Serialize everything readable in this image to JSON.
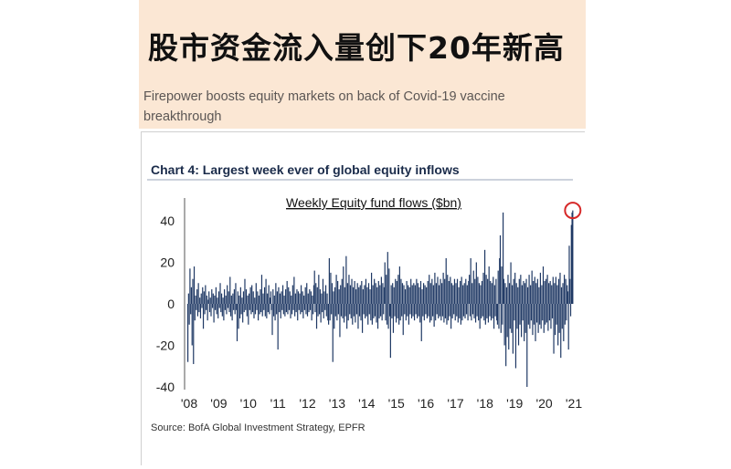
{
  "headline": "股市资金流入量创下20年新高",
  "subheadline": "Firepower boosts equity markets on back of Covid-19 vaccine breakthrough",
  "colors": {
    "header_bg": "#fbe7d4",
    "bar": "#1f3864",
    "highlight_circle": "#d62828"
  },
  "chart_data": {
    "type": "bar",
    "title": "Chart 4: Largest week ever of global equity inflows",
    "subtitle": "Weekly Equity fund flows ($bn)",
    "source": "Source: BofA Global Investment Strategy, EPFR",
    "xlabel": "",
    "ylabel": "",
    "ylim": [
      -40,
      50
    ],
    "yticks": [
      40,
      20,
      0,
      -20,
      -40
    ],
    "xtick_labels": [
      "'08",
      "'09",
      "'10",
      "'11",
      "'12",
      "'13",
      "'14",
      "'15",
      "'16",
      "'17",
      "'18",
      "'19",
      "'20",
      "'21"
    ],
    "x_start": "2008-01",
    "x_end": "2020-11",
    "frequency": "weekly",
    "annotations": [
      {
        "type": "circle",
        "target": "last bar",
        "value": 45
      }
    ],
    "values": [
      -28,
      5,
      -10,
      17,
      -5,
      8,
      -20,
      12,
      -29,
      18,
      -8,
      4,
      -3,
      7,
      -6,
      10,
      -4,
      3,
      -7,
      5,
      -2,
      8,
      -12,
      6,
      -5,
      9,
      -3,
      4,
      -8,
      2,
      6,
      -4,
      3,
      -6,
      7,
      -2,
      5,
      -9,
      4,
      -3,
      8,
      -5,
      3,
      -7,
      6,
      -2,
      10,
      -4,
      5,
      -6,
      3,
      -8,
      7,
      -3,
      4,
      -5,
      9,
      -2,
      6,
      -4,
      13,
      -6,
      4,
      -8,
      5,
      -3,
      7,
      -5,
      10,
      -3,
      -18,
      6,
      -12,
      4,
      -7,
      8,
      -5,
      3,
      -9,
      6,
      -4,
      12,
      -3,
      7,
      -6,
      4,
      -10,
      5,
      -3,
      8,
      -5,
      9,
      -4,
      6,
      -7,
      3,
      -5,
      10,
      -3,
      6,
      -8,
      4,
      -5,
      7,
      -4,
      14,
      -6,
      5,
      -3,
      8,
      -6,
      12,
      -7,
      5,
      -4,
      9,
      -5,
      3,
      6,
      -3,
      -15,
      7,
      -6,
      4,
      -8,
      10,
      -5,
      6,
      -22,
      8,
      -4,
      5,
      -7,
      6,
      -3,
      9,
      -5,
      4,
      -6,
      7,
      -4,
      11,
      -5,
      8,
      -3,
      6,
      -7,
      4,
      -5,
      9,
      -3,
      13,
      -6,
      5,
      -4,
      7,
      -8,
      6,
      -3,
      5,
      -5,
      9,
      -4,
      6,
      -7,
      4,
      -3,
      8,
      -5,
      10,
      -6,
      5,
      -4,
      7,
      -3,
      6,
      -8,
      4,
      -5,
      9,
      16,
      -4,
      10,
      -12,
      8,
      -6,
      14,
      -5,
      7,
      -9,
      5,
      -4,
      12,
      -7,
      6,
      -3,
      9,
      -6,
      5,
      -8,
      -10,
      22,
      -8,
      15,
      -5,
      10,
      -28,
      6,
      -12,
      8,
      -6,
      14,
      -8,
      11,
      -5,
      7,
      -16,
      9,
      -6,
      12,
      -7,
      18,
      -9,
      8,
      -6,
      23,
      -12,
      10,
      -8,
      14,
      -5,
      9,
      -7,
      12,
      -10,
      8,
      -6,
      11,
      -9,
      7,
      -5,
      10,
      -12,
      8,
      -6,
      9,
      -8,
      11,
      -14,
      7,
      -5,
      9,
      -7,
      12,
      -6,
      8,
      -10,
      10,
      -5,
      7,
      -8,
      15,
      -10,
      9,
      -7,
      12,
      -6,
      10,
      -9,
      8,
      -12,
      11,
      -7,
      9,
      -6,
      13,
      -8,
      10,
      -5,
      8,
      20,
      -8,
      14,
      -10,
      25,
      -12,
      17,
      -6,
      -26,
      9,
      -7,
      10,
      -14,
      8,
      -6,
      12,
      -9,
      11,
      -7,
      14,
      -10,
      18,
      -8,
      12,
      -6,
      10,
      -15,
      9,
      -5,
      7,
      -8,
      11,
      -6,
      9,
      -10,
      8,
      -5,
      12,
      -7,
      9,
      -6,
      10,
      -8,
      9,
      -5,
      12,
      -7,
      10,
      -6,
      8,
      -9,
      11,
      -18,
      7,
      -6,
      10,
      -8,
      9,
      -5,
      8,
      -7,
      11,
      -6,
      14,
      -9,
      10,
      -8,
      12,
      -6,
      9,
      -11,
      15,
      -8,
      10,
      -5,
      13,
      -7,
      9,
      -6,
      12,
      -8,
      10,
      -6,
      15,
      -9,
      12,
      -7,
      22,
      -10,
      14,
      -8,
      11,
      -6,
      13,
      -12,
      10,
      -7,
      9,
      -5,
      12,
      -8,
      10,
      -6,
      12,
      -9,
      8,
      -7,
      11,
      -10,
      13,
      -8,
      9,
      -6,
      10,
      -7,
      12,
      -5,
      9,
      -8,
      11,
      14,
      -6,
      22,
      -8,
      10,
      -5,
      16,
      -7,
      12,
      -9,
      20,
      -6,
      13,
      -8,
      10,
      -12,
      9,
      -7,
      11,
      -6,
      15,
      -8,
      26,
      -10,
      14,
      -7,
      12,
      -9,
      18,
      -6,
      11,
      -8,
      10,
      -7,
      13,
      -12,
      9,
      -6,
      12,
      -8,
      -10,
      16,
      -12,
      22,
      33,
      -14,
      18,
      -10,
      44,
      12,
      -20,
      10,
      -30,
      8,
      -16,
      14,
      -22,
      10,
      -12,
      20,
      -14,
      9,
      -24,
      12,
      -8,
      15,
      -31,
      10,
      -12,
      8,
      -20,
      12,
      -10,
      14,
      -16,
      9,
      -8,
      11,
      -18,
      10,
      -14,
      12,
      -40,
      8,
      -10,
      14,
      -12,
      9,
      -8,
      16,
      -15,
      11,
      -10,
      13,
      -18,
      10,
      -9,
      12,
      -14,
      8,
      -10,
      15,
      -12,
      9,
      -8,
      18,
      -14,
      11,
      -10,
      12,
      -9,
      14,
      -13,
      10,
      -8,
      11,
      -12,
      9,
      -7,
      13,
      -24,
      10,
      -15,
      13,
      -10,
      9,
      -20,
      12,
      -14,
      15,
      -26,
      8,
      -12,
      10,
      -18,
      14,
      -10,
      12,
      -8,
      9,
      6,
      -22,
      28,
      12,
      -6,
      38,
      44,
      45
    ]
  }
}
